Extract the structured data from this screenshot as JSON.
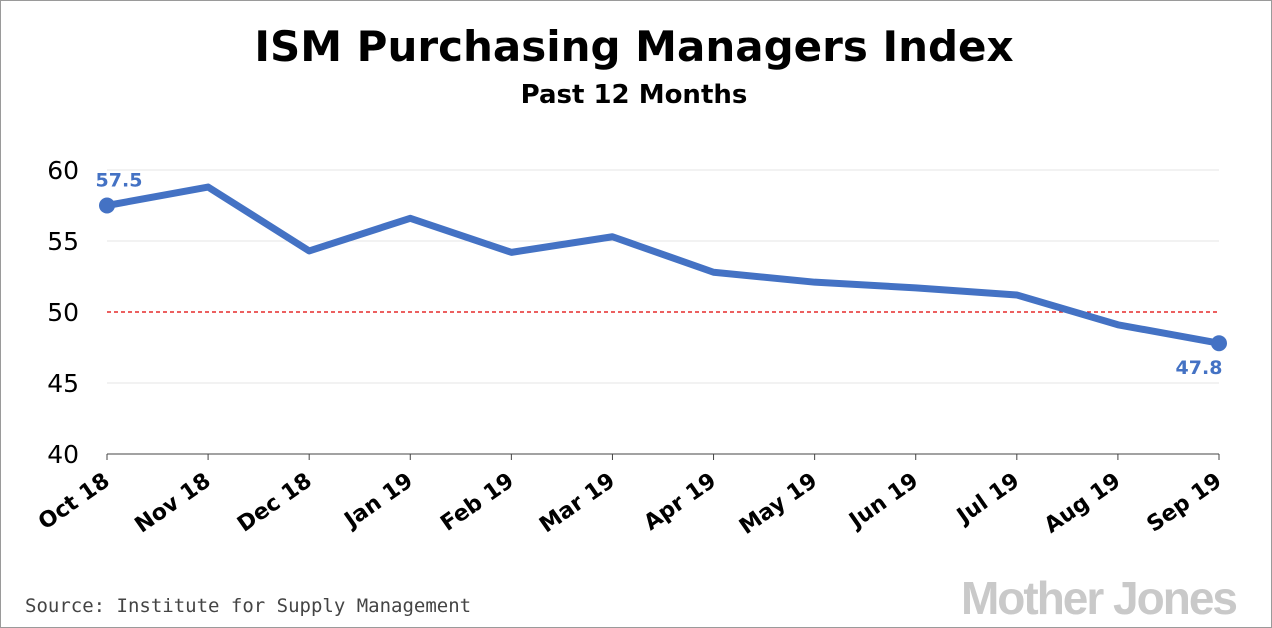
{
  "colors": {
    "series": "#4472c4",
    "threshold": "#e00000",
    "grid": "#e6e6e6",
    "axis": "#444444",
    "logo": "#c9c9c9"
  },
  "source": "Source: Institute for Supply Management",
  "logo_text": "Mother Jones",
  "chart_data": {
    "type": "line",
    "title": "ISM Purchasing Managers Index",
    "subtitle": "Past 12 Months",
    "xlabel": "",
    "ylabel": "",
    "categories": [
      "Oct 18",
      "Nov 18",
      "Dec 18",
      "Jan 19",
      "Feb 19",
      "Mar 19",
      "Apr 19",
      "May 19",
      "Jun 19",
      "Jul 19",
      "Aug 19",
      "Sep 19"
    ],
    "series": [
      {
        "values": [
          57.5,
          58.8,
          54.3,
          56.6,
          54.2,
          55.3,
          52.8,
          52.1,
          51.7,
          51.2,
          49.1,
          47.8
        ]
      }
    ],
    "ylim": [
      40,
      60
    ],
    "yticks": [
      "40",
      "45",
      "50",
      "55",
      "60"
    ],
    "highlight_tick": "50",
    "threshold": 50,
    "grid": true,
    "legend": "none",
    "data_labels": [
      {
        "index": 0,
        "text": "57.5"
      },
      {
        "index": 11,
        "text": "47.8"
      }
    ]
  }
}
